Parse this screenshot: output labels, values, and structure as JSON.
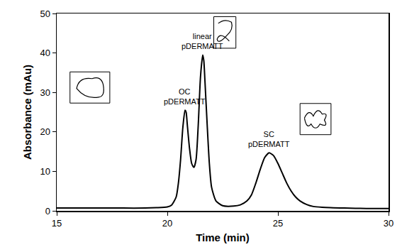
{
  "chart_data": {
    "type": "line",
    "x_label": "Time (min)",
    "y_label": "Absorbance (mAu)",
    "x": [
      15,
      16,
      17,
      18,
      19,
      19.5,
      20,
      20.2,
      20.4,
      20.5,
      20.6,
      20.7,
      20.8,
      20.85,
      20.9,
      21.0,
      21.1,
      21.2,
      21.3,
      21.4,
      21.5,
      21.6,
      21.65,
      21.7,
      21.8,
      21.9,
      22.0,
      22.2,
      22.5,
      23.0,
      23.3,
      23.6,
      23.8,
      24.0,
      24.2,
      24.4,
      24.6,
      24.8,
      25.0,
      25.2,
      25.4,
      25.6,
      25.8,
      26.0,
      26.3,
      26.6,
      27,
      28,
      29,
      30
    ],
    "values": [
      0.7,
      0.7,
      0.7,
      0.7,
      0.7,
      0.8,
      1.0,
      1.5,
      3.5,
      7,
      13,
      21,
      25.5,
      25,
      22,
      16,
      12,
      11,
      13,
      22,
      34,
      39.5,
      38,
      33,
      22,
      12,
      6,
      2.5,
      1.3,
      1.2,
      1.5,
      2.5,
      4,
      7,
      10.5,
      13.5,
      14.7,
      14,
      12,
      9.5,
      7,
      5,
      3.5,
      2.5,
      1.6,
      1.1,
      0.9,
      0.7,
      0.6,
      0.6
    ],
    "color": "#000000",
    "xlim": [
      15,
      30
    ],
    "xticks": [
      15,
      20,
      25,
      30
    ],
    "ylim": [
      0,
      50
    ],
    "yticks": [
      0,
      10,
      20,
      30,
      40,
      50
    ],
    "grid": false,
    "annotations": [
      {
        "text": "OC\npDERMATT",
        "x": 20.8,
        "y": 25.5
      },
      {
        "text": "linear\npDERMATT",
        "x": 21.6,
        "y": 39.5
      },
      {
        "text": "SC\npDERMATT",
        "x": 24.6,
        "y": 14.7
      }
    ]
  }
}
